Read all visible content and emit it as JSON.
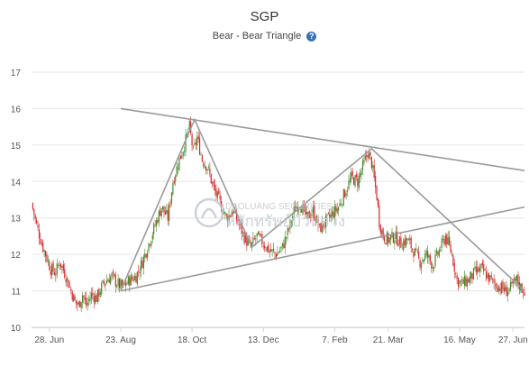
{
  "chart_data": {
    "type": "candlestick",
    "title": "SGP",
    "subtitle": "Bear - Bear Triangle",
    "info_icon": "question-circle-icon",
    "xlabel": "",
    "ylabel": "",
    "ylim": [
      10,
      17
    ],
    "y_ticks": [
      10,
      11,
      12,
      13,
      14,
      15,
      16,
      17
    ],
    "x_range": [
      "2018-06-14",
      "2019-07-06"
    ],
    "x_ticks": [
      {
        "label": "28. Jun",
        "date": "2018-06-28"
      },
      {
        "label": "23. Aug",
        "date": "2018-08-23"
      },
      {
        "label": "18. Oct",
        "date": "2018-10-18"
      },
      {
        "label": "13. Dec",
        "date": "2018-12-13"
      },
      {
        "label": "7. Feb",
        "date": "2019-02-07"
      },
      {
        "label": "21. Mar",
        "date": "2019-03-21"
      },
      {
        "label": "16. May",
        "date": "2019-05-16"
      },
      {
        "label": "27. Jun",
        "date": "2019-06-27"
      }
    ],
    "grid": true,
    "legend": "none",
    "colors": {
      "up": "#4a8a2c",
      "down": "#d9262b",
      "pattern_line": "#9a9a9a",
      "info": "#3572b8"
    },
    "watermark": {
      "top": "DAOLUANG SECURITIES",
      "bottom": "หลักทรัพย์บัวหลวง"
    },
    "price_path": [
      [
        "2018-06-14",
        13.4
      ],
      [
        "2018-06-18",
        12.8
      ],
      [
        "2018-06-22",
        12.3
      ],
      [
        "2018-06-26",
        11.9
      ],
      [
        "2018-06-29",
        11.6
      ],
      [
        "2018-07-03",
        11.5
      ],
      [
        "2018-07-06",
        11.8
      ],
      [
        "2018-07-10",
        11.5
      ],
      [
        "2018-07-14",
        11.1
      ],
      [
        "2018-07-18",
        10.7
      ],
      [
        "2018-07-21",
        10.6
      ],
      [
        "2018-07-24",
        10.9
      ],
      [
        "2018-07-27",
        10.6
      ],
      [
        "2018-07-31",
        10.9
      ],
      [
        "2018-08-04",
        10.8
      ],
      [
        "2018-08-08",
        11.1
      ],
      [
        "2018-08-12",
        11.3
      ],
      [
        "2018-08-16",
        11.4
      ],
      [
        "2018-08-20",
        11.2
      ],
      [
        "2018-08-25",
        11.1
      ],
      [
        "2018-08-30",
        11.3
      ],
      [
        "2018-09-04",
        11.4
      ],
      [
        "2018-09-09",
        11.8
      ],
      [
        "2018-09-14",
        12.3
      ],
      [
        "2018-09-19",
        12.8
      ],
      [
        "2018-09-24",
        13.3
      ],
      [
        "2018-09-29",
        13.0
      ],
      [
        "2018-10-03",
        14.0
      ],
      [
        "2018-10-07",
        14.5
      ],
      [
        "2018-10-12",
        15.0
      ],
      [
        "2018-10-16",
        15.5
      ],
      [
        "2018-10-19",
        14.8
      ],
      [
        "2018-10-22",
        15.2
      ],
      [
        "2018-10-26",
        14.6
      ],
      [
        "2018-10-30",
        14.4
      ],
      [
        "2018-11-04",
        13.8
      ],
      [
        "2018-11-09",
        13.4
      ],
      [
        "2018-11-14",
        13.0
      ],
      [
        "2018-11-19",
        13.2
      ],
      [
        "2018-11-24",
        12.8
      ],
      [
        "2018-11-29",
        12.4
      ],
      [
        "2018-12-03",
        12.2
      ],
      [
        "2018-12-08",
        12.5
      ],
      [
        "2018-12-13",
        12.3
      ],
      [
        "2018-12-18",
        12.1
      ],
      [
        "2018-12-23",
        12.0
      ],
      [
        "2018-12-28",
        12.2
      ],
      [
        "2019-01-02",
        12.7
      ],
      [
        "2019-01-07",
        13.3
      ],
      [
        "2019-01-11",
        13.4
      ],
      [
        "2019-01-16",
        13.0
      ],
      [
        "2019-01-21",
        13.2
      ],
      [
        "2019-01-26",
        12.7
      ],
      [
        "2019-01-31",
        12.9
      ],
      [
        "2019-02-05",
        13.1
      ],
      [
        "2019-02-10",
        13.3
      ],
      [
        "2019-02-15",
        13.7
      ],
      [
        "2019-02-20",
        14.1
      ],
      [
        "2019-02-25",
        14.0
      ],
      [
        "2019-03-01",
        14.4
      ],
      [
        "2019-03-05",
        14.8
      ],
      [
        "2019-03-08",
        14.5
      ],
      [
        "2019-03-12",
        13.6
      ],
      [
        "2019-03-14",
        12.9
      ],
      [
        "2019-03-17",
        12.5
      ],
      [
        "2019-03-21",
        12.4
      ],
      [
        "2019-03-26",
        12.5
      ],
      [
        "2019-03-31",
        12.3
      ],
      [
        "2019-04-05",
        12.4
      ],
      [
        "2019-04-10",
        12.1
      ],
      [
        "2019-04-15",
        11.8
      ],
      [
        "2019-04-20",
        12.0
      ],
      [
        "2019-04-25",
        11.7
      ],
      [
        "2019-04-30",
        12.1
      ],
      [
        "2019-05-05",
        12.5
      ],
      [
        "2019-05-10",
        12.0
      ],
      [
        "2019-05-14",
        11.3
      ],
      [
        "2019-05-18",
        11.2
      ],
      [
        "2019-05-23",
        11.3
      ],
      [
        "2019-05-28",
        11.5
      ],
      [
        "2019-06-02",
        11.6
      ],
      [
        "2019-06-07",
        11.4
      ],
      [
        "2019-06-12",
        11.2
      ],
      [
        "2019-06-17",
        11.1
      ],
      [
        "2019-06-22",
        11.0
      ],
      [
        "2019-06-26",
        11.1
      ],
      [
        "2019-06-30",
        11.3
      ],
      [
        "2019-07-03",
        11.1
      ],
      [
        "2019-07-06",
        11.0
      ]
    ],
    "pattern_lines": [
      {
        "name": "",
        "points": [
          [
            "2018-08-23",
            16.0
          ],
          [
            "2019-07-06",
            14.3
          ]
        ]
      },
      {
        "name": "",
        "points": [
          [
            "2018-08-23",
            11.0
          ],
          [
            "2019-07-06",
            13.3
          ]
        ]
      },
      {
        "name": "",
        "points": [
          [
            "2018-08-23",
            11.0
          ],
          [
            "2018-10-20",
            15.7
          ],
          [
            "2018-12-04",
            12.2
          ],
          [
            "2019-03-08",
            14.9
          ],
          [
            "2019-07-06",
            11.0
          ]
        ]
      }
    ]
  }
}
